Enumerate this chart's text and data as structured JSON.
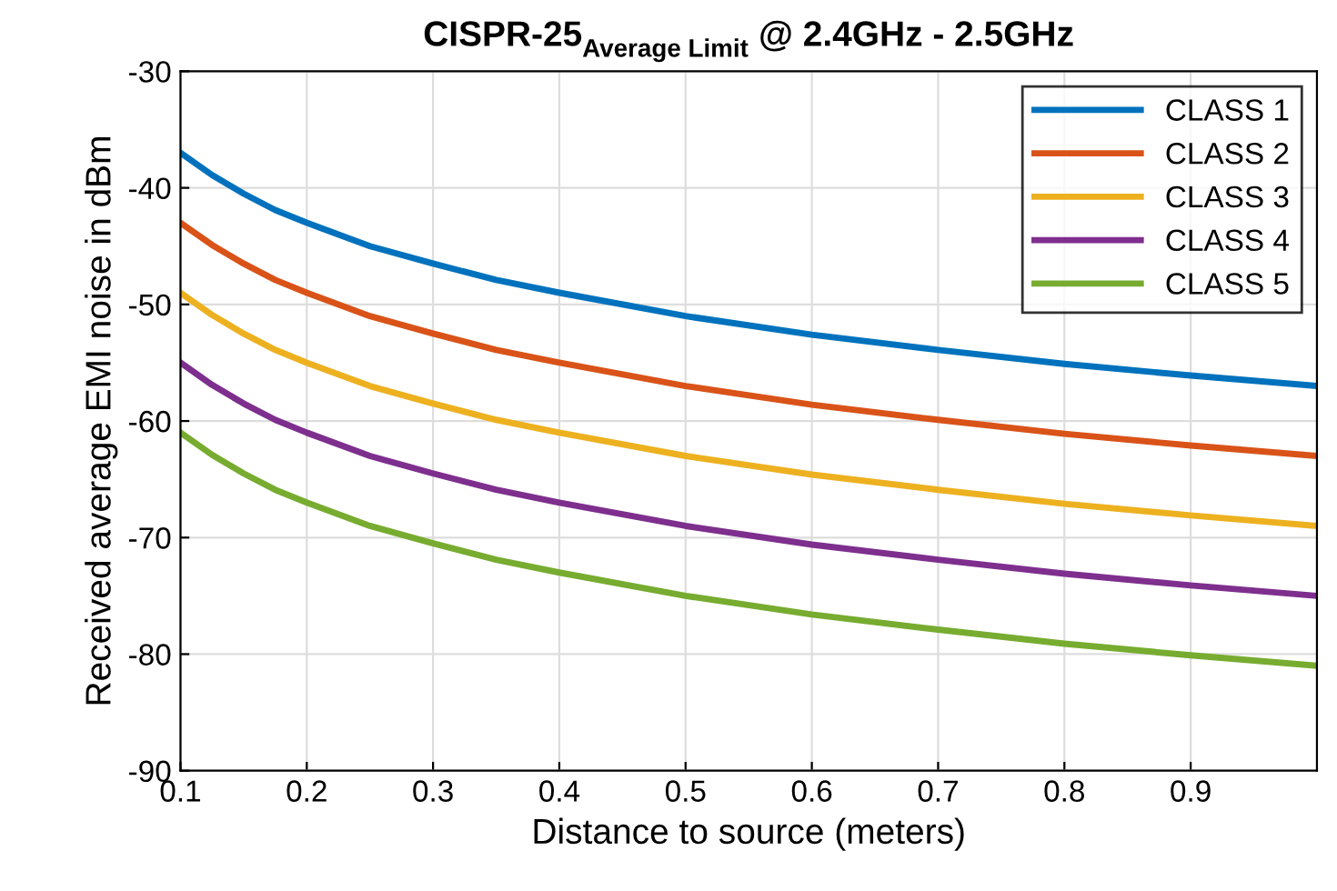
{
  "chart_data": {
    "type": "line",
    "title": "CISPR-25$_{Average Limit}$ @ 2.4GHz - 2.5GHz",
    "xlabel": "Distance to source (meters)",
    "ylabel": "Received average EMI noise in dBm",
    "x": [
      0.1,
      0.125,
      0.15,
      0.175,
      0.2,
      0.25,
      0.3,
      0.35,
      0.4,
      0.5,
      0.6,
      0.7,
      0.8,
      0.9,
      1.0
    ],
    "series": [
      {
        "name": "CLASS 1",
        "color": "#0072bd",
        "values": [
          -37.0,
          -38.9,
          -40.5,
          -41.9,
          -43.0,
          -45.0,
          -46.5,
          -47.9,
          -49.0,
          -51.0,
          -52.6,
          -53.9,
          -55.1,
          -56.1,
          -57.0
        ]
      },
      {
        "name": "CLASS 2",
        "color": "#d95319",
        "values": [
          -43.0,
          -44.9,
          -46.5,
          -47.9,
          -49.0,
          -51.0,
          -52.5,
          -53.9,
          -55.0,
          -57.0,
          -58.6,
          -59.9,
          -61.1,
          -62.1,
          -63.0
        ]
      },
      {
        "name": "CLASS 3",
        "color": "#edb120",
        "values": [
          -49.0,
          -50.9,
          -52.5,
          -53.9,
          -55.0,
          -57.0,
          -58.5,
          -59.9,
          -61.0,
          -63.0,
          -64.6,
          -65.9,
          -67.1,
          -68.1,
          -69.0
        ]
      },
      {
        "name": "CLASS 4",
        "color": "#7e2f8e",
        "values": [
          -55.0,
          -56.9,
          -58.5,
          -59.9,
          -61.0,
          -63.0,
          -64.5,
          -65.9,
          -67.0,
          -69.0,
          -70.6,
          -71.9,
          -73.1,
          -74.1,
          -75.0
        ]
      },
      {
        "name": "CLASS 5",
        "color": "#77ac30",
        "values": [
          -61.0,
          -62.9,
          -64.5,
          -65.9,
          -67.0,
          -69.0,
          -70.5,
          -71.9,
          -73.0,
          -75.0,
          -76.6,
          -77.9,
          -79.1,
          -80.1,
          -81.0
        ]
      }
    ],
    "xlim": [
      0.1,
      1.0
    ],
    "xticks": [
      0.1,
      0.2,
      0.3,
      0.4,
      0.5,
      0.6,
      0.7,
      0.8,
      0.9
    ],
    "ylim": [
      -90,
      -30
    ],
    "yticks": [
      -90,
      -80,
      -70,
      -60,
      -50,
      -40,
      -30
    ],
    "grid": true,
    "legend": "top right",
    "line_style": "solid",
    "marker": "none"
  }
}
